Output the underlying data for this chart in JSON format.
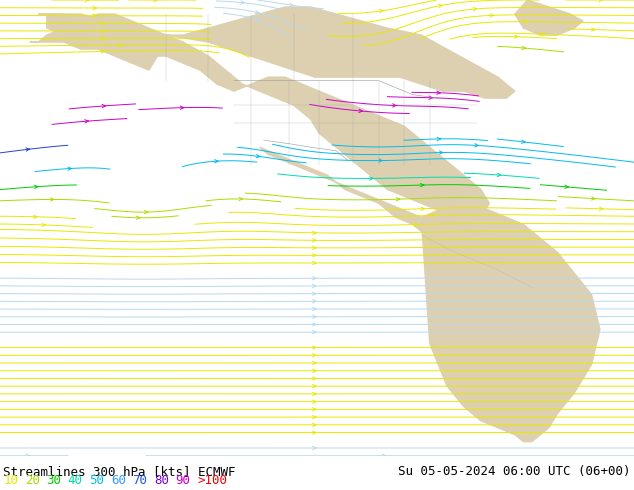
{
  "title_left": "Streamlines 300 hPa [kts] ECMWF",
  "title_right": "Su 05-05-2024 06:00 UTC (06+00)",
  "legend_values": [
    "10",
    "20",
    "30",
    "40",
    "50",
    "60",
    "70",
    "80",
    "90",
    ">100"
  ],
  "legend_colors": [
    "#e8e800",
    "#aadd00",
    "#00cc00",
    "#00ddaa",
    "#00bbee",
    "#3399ff",
    "#2255dd",
    "#7700cc",
    "#cc00cc",
    "#ee0000"
  ],
  "bg_ocean": "#b8d8f0",
  "bg_land": "#ddd0b0",
  "border_color": "#999999",
  "title_fontsize": 9,
  "legend_fontsize": 9,
  "figsize": [
    6.34,
    4.9
  ],
  "dpi": 100,
  "lon_min": -179,
  "lon_max": -30,
  "lat_min": -58,
  "lat_max": 72
}
